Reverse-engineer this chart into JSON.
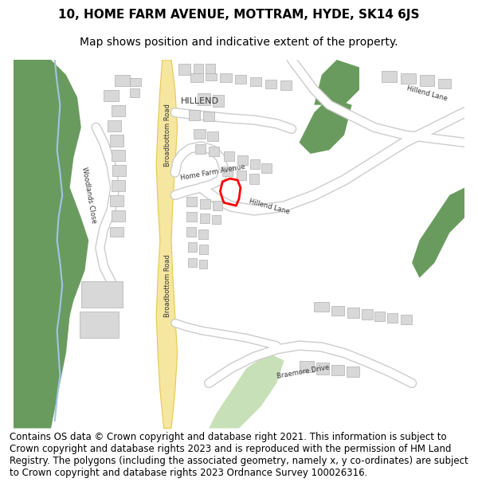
{
  "title_line1": "10, HOME FARM AVENUE, MOTTRAM, HYDE, SK14 6JS",
  "title_line2": "Map shows position and indicative extent of the property.",
  "footer_text": "Contains OS data © Crown copyright and database right 2021. This information is subject to Crown copyright and database rights 2023 and is reproduced with the permission of HM Land Registry. The polygons (including the associated geometry, namely x, y co-ordinates) are subject to Crown copyright and database rights 2023 Ordnance Survey 100026316.",
  "bg_color": "#ffffff",
  "map_bg": "#f5f5f0",
  "road_yellow": "#f5e6a0",
  "road_yellow_border": "#e8c84a",
  "road_gray": "#e8e8e8",
  "road_white": "#ffffff",
  "building_color": "#d8d8d8",
  "building_edge": "#b0b0b0",
  "green_dark": "#6a9b5e",
  "green_light": "#c8e0b8",
  "water_blue": "#a0c4e8",
  "red_outline": "#ff0000",
  "title_fontsize": 11,
  "subtitle_fontsize": 10,
  "footer_fontsize": 8.5,
  "map_xlim": [
    0,
    600
  ],
  "map_ylim": [
    0,
    490
  ]
}
